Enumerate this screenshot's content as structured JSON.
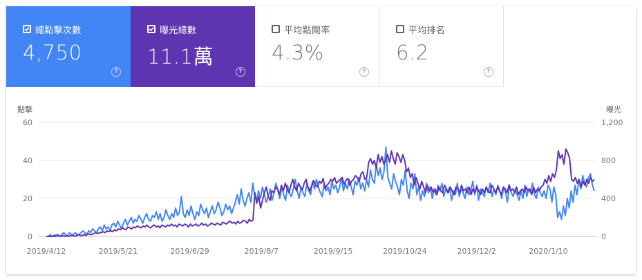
{
  "metrics": [
    {
      "label": "總點擊次數",
      "value": "4,750",
      "selected": true,
      "color": "#4285f4"
    },
    {
      "label": "曝光總數",
      "value": "11.1萬",
      "selected": true,
      "color": "#5e35b1"
    },
    {
      "label": "平均點閱率",
      "value": "4.3%",
      "selected": false,
      "color": "#ffffff"
    },
    {
      "label": "平均排名",
      "value": "6.2",
      "selected": false,
      "color": "#ffffff"
    }
  ],
  "help_icon": "help-circle-icon",
  "checkbox_icon": "checkbox-icon",
  "chart_data": {
    "type": "line",
    "left_axis_title": "點擊",
    "right_axis_title": "曝光",
    "left_ylim": [
      0,
      60
    ],
    "right_ylim": [
      0,
      1200
    ],
    "left_ticks": [
      "0",
      "20",
      "40",
      "60"
    ],
    "right_ticks": [
      "0",
      "400",
      "800",
      "1,200"
    ],
    "x_ticks": [
      "2019/4/12",
      "2019/5/21",
      "2019/6/29",
      "2019/8/7",
      "2019/9/15",
      "2019/10/24",
      "2019/12/2",
      "2020/1/10"
    ],
    "x_start": "2019/4/12",
    "x_end": "2020/2/4",
    "grid": true,
    "series": [
      {
        "name": "總點擊次數",
        "axis": "left",
        "color": "#4285f4",
        "values": [
          0,
          0,
          1,
          0,
          0,
          1,
          1,
          0,
          1,
          2,
          1,
          0,
          2,
          1,
          1,
          2,
          1,
          1,
          2,
          3,
          2,
          1,
          3,
          2,
          4,
          3,
          2,
          4,
          5,
          3,
          6,
          4,
          5,
          3,
          6,
          7,
          5,
          8,
          6,
          4,
          7,
          9,
          6,
          8,
          10,
          7,
          9,
          8,
          11,
          9,
          7,
          10,
          12,
          9,
          8,
          11,
          10,
          13,
          9,
          12,
          8,
          10,
          14,
          11,
          9,
          12,
          10,
          15,
          11,
          13,
          21,
          12,
          10,
          14,
          11,
          16,
          12,
          9,
          13,
          11,
          17,
          14,
          12,
          15,
          10,
          13,
          16,
          12,
          14,
          18,
          15,
          11,
          13,
          17,
          14,
          16,
          12,
          15,
          18,
          22,
          17,
          25,
          19,
          16,
          20,
          23,
          18,
          28,
          21,
          19,
          24,
          20,
          26,
          22,
          18,
          21,
          25,
          19,
          23,
          28,
          24,
          20,
          26,
          22,
          19,
          27,
          23,
          21,
          25,
          30,
          24,
          20,
          26,
          23,
          21,
          28,
          24,
          22,
          29,
          25,
          30,
          26,
          23,
          21,
          28,
          24,
          26,
          22,
          29,
          25,
          27,
          23,
          26,
          31,
          24,
          28,
          25,
          30,
          26,
          22,
          29,
          27,
          31,
          25,
          28,
          24,
          30,
          26,
          35,
          30,
          28,
          38,
          32,
          36,
          30,
          34,
          47,
          31,
          28,
          25,
          33,
          29,
          26,
          22,
          30,
          27,
          35,
          24,
          20,
          28,
          25,
          33,
          22,
          26,
          19,
          24,
          21,
          28,
          23,
          26,
          20,
          25,
          22,
          27,
          24,
          28,
          21,
          25,
          23,
          26,
          19,
          24,
          22,
          28,
          21,
          25,
          23,
          20,
          26,
          22,
          24,
          29,
          22,
          27,
          19,
          25,
          23,
          21,
          26,
          23,
          28,
          21,
          25,
          22,
          27,
          24,
          20,
          26,
          23,
          18,
          27,
          23,
          21,
          25,
          22,
          19,
          24,
          20,
          27,
          21,
          25,
          23,
          28,
          22,
          20,
          26,
          23,
          21,
          24,
          20,
          27,
          25,
          18,
          26,
          22,
          10,
          13,
          9,
          16,
          11,
          20,
          15,
          24,
          18,
          27,
          22,
          30,
          25,
          32,
          28,
          26,
          31,
          33,
          27,
          24
        ]
      },
      {
        "name": "曝光總數",
        "axis": "right",
        "color": "#5e35b1",
        "values": [
          0,
          0,
          0,
          0,
          10,
          0,
          10,
          0,
          0,
          10,
          0,
          10,
          0,
          10,
          10,
          0,
          10,
          20,
          10,
          10,
          20,
          10,
          30,
          20,
          20,
          30,
          40,
          30,
          40,
          40,
          50,
          40,
          60,
          50,
          60,
          50,
          70,
          60,
          80,
          70,
          90,
          80,
          70,
          100,
          90,
          80,
          100,
          90,
          110,
          100,
          90,
          110,
          100,
          120,
          100,
          90,
          110,
          120,
          100,
          110,
          90,
          120,
          110,
          100,
          120,
          110,
          130,
          110,
          120,
          100,
          130,
          120,
          110,
          130,
          120,
          100,
          130,
          110,
          120,
          130,
          110,
          120,
          140,
          120,
          130,
          110,
          120,
          140,
          130,
          120,
          140,
          130,
          120,
          150,
          140,
          130,
          150,
          160,
          140,
          150,
          130,
          160,
          140,
          150,
          170,
          160,
          140,
          180,
          160,
          170,
          460,
          350,
          420,
          300,
          380,
          460,
          520,
          420,
          380,
          480,
          460,
          520,
          500,
          440,
          540,
          480,
          560,
          500,
          460,
          540,
          600,
          520,
          480,
          560,
          520,
          490,
          560,
          600,
          520,
          480,
          540,
          590,
          540,
          520,
          580,
          560,
          610,
          500,
          540,
          560,
          600,
          580,
          620,
          560,
          580,
          600,
          620,
          550,
          590,
          610,
          540,
          580,
          600,
          640,
          620,
          580,
          660,
          680,
          600,
          620,
          780,
          820,
          760,
          800,
          720,
          860,
          780,
          840,
          760,
          800,
          860,
          780,
          900,
          820,
          760,
          880,
          840,
          780,
          860,
          800,
          680,
          720,
          620,
          660,
          540,
          620,
          560,
          500,
          580,
          520,
          460,
          540,
          480,
          520,
          460,
          500,
          440,
          520,
          480,
          460,
          540,
          500,
          460,
          520,
          480,
          440,
          520,
          500,
          460,
          540,
          480,
          500,
          460,
          520,
          440,
          500,
          460,
          520,
          480,
          440,
          500,
          460,
          520,
          480,
          460,
          540,
          500,
          460,
          520,
          480,
          440,
          520,
          500,
          460,
          540,
          480,
          500,
          460,
          520,
          440,
          480,
          500,
          460,
          520,
          480,
          500,
          440,
          520,
          460,
          500,
          480,
          520,
          540,
          600,
          560,
          640,
          580,
          660,
          620,
          700,
          900,
          820,
          860,
          760,
          920,
          880,
          820,
          600,
          580,
          620,
          560,
          600,
          520,
          580,
          540,
          600,
          560,
          620,
          580,
          600
        ]
      }
    ]
  }
}
